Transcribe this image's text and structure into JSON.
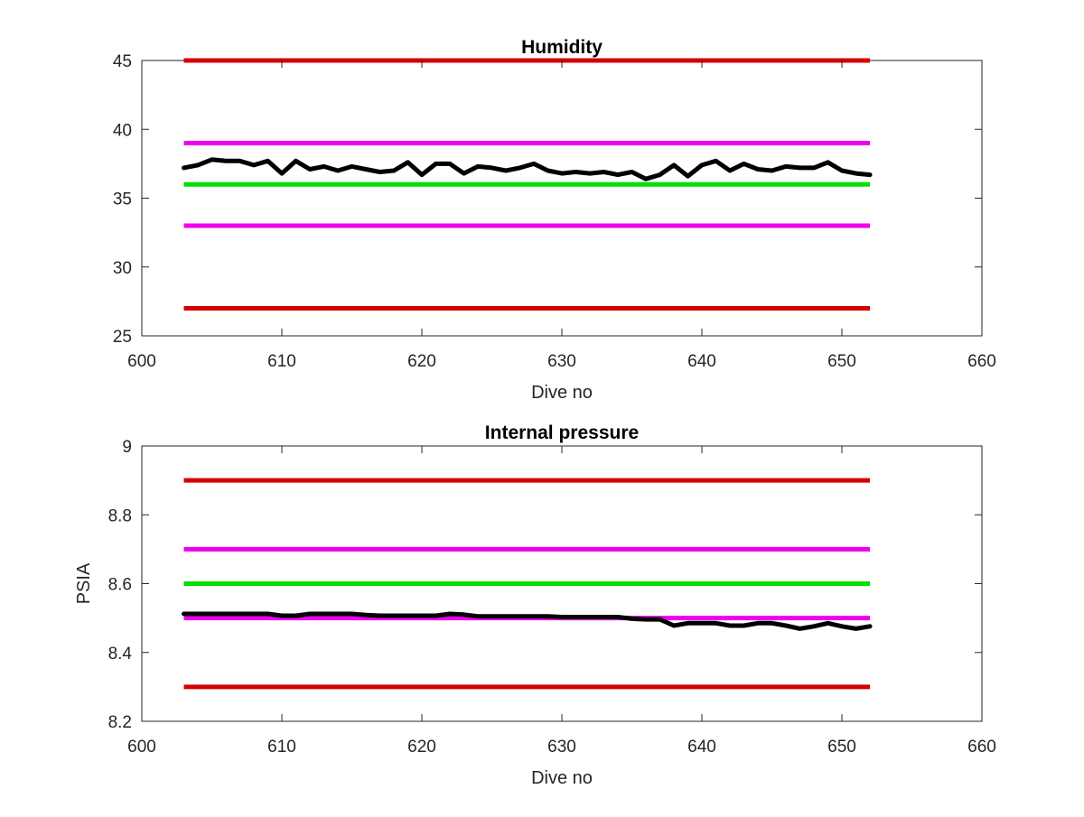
{
  "chart_data": [
    {
      "type": "line",
      "title": "Humidity",
      "xlabel": "Dive no",
      "ylabel": "",
      "xlim": [
        600,
        660
      ],
      "ylim": [
        25,
        45
      ],
      "xticks": [
        "600",
        "610",
        "620",
        "630",
        "640",
        "650",
        "660"
      ],
      "yticks": [
        "25",
        "30",
        "35",
        "40",
        "45"
      ],
      "grid": false,
      "threshold_lines": [
        {
          "y": 45,
          "x": [
            603,
            652
          ],
          "color": "#d40000"
        },
        {
          "y": 39,
          "x": [
            603,
            652
          ],
          "color": "#ee00ee"
        },
        {
          "y": 36,
          "x": [
            603,
            652
          ],
          "color": "#00e000"
        },
        {
          "y": 33,
          "x": [
            603,
            652
          ],
          "color": "#ee00ee"
        },
        {
          "y": 27,
          "x": [
            603,
            652
          ],
          "color": "#d40000"
        }
      ],
      "series": [
        {
          "color": "#000000",
          "x": [
            603,
            604,
            605,
            606,
            607,
            608,
            609,
            610,
            611,
            612,
            613,
            614,
            615,
            616,
            617,
            618,
            619,
            620,
            621,
            622,
            623,
            624,
            625,
            626,
            627,
            628,
            629,
            630,
            631,
            632,
            633,
            634,
            635,
            636,
            637,
            638,
            639,
            640,
            641,
            642,
            643,
            644,
            645,
            646,
            647,
            648,
            649,
            650,
            651,
            652
          ],
          "values": [
            37.2,
            37.4,
            37.8,
            37.7,
            37.7,
            37.4,
            37.7,
            36.8,
            37.7,
            37.1,
            37.3,
            37.0,
            37.3,
            37.1,
            36.9,
            37.0,
            37.6,
            36.7,
            37.5,
            37.5,
            36.8,
            37.3,
            37.2,
            37.0,
            37.2,
            37.5,
            37.0,
            36.8,
            36.9,
            36.8,
            36.9,
            36.7,
            36.9,
            36.4,
            36.7,
            37.4,
            36.6,
            37.4,
            37.7,
            37.0,
            37.5,
            37.1,
            37.0,
            37.3,
            37.2,
            37.2,
            37.6,
            37.0,
            36.8,
            36.7
          ]
        }
      ]
    },
    {
      "type": "line",
      "title": "Internal pressure",
      "xlabel": "Dive no",
      "ylabel": "PSIA",
      "xlim": [
        600,
        660
      ],
      "ylim": [
        8.2,
        9
      ],
      "xticks": [
        "600",
        "610",
        "620",
        "630",
        "640",
        "650",
        "660"
      ],
      "yticks": [
        "8.2",
        "8.4",
        "8.6",
        "8.8",
        "9"
      ],
      "grid": false,
      "threshold_lines": [
        {
          "y": 8.9,
          "x": [
            603,
            652
          ],
          "color": "#d40000"
        },
        {
          "y": 8.7,
          "x": [
            603,
            652
          ],
          "color": "#ee00ee"
        },
        {
          "y": 8.6,
          "x": [
            603,
            652
          ],
          "color": "#00e000"
        },
        {
          "y": 8.5,
          "x": [
            603,
            652
          ],
          "color": "#ee00ee"
        },
        {
          "y": 8.3,
          "x": [
            603,
            652
          ],
          "color": "#d40000"
        }
      ],
      "series": [
        {
          "color": "#000000",
          "x": [
            603,
            604,
            605,
            606,
            607,
            608,
            609,
            610,
            611,
            612,
            613,
            614,
            615,
            616,
            617,
            618,
            619,
            620,
            621,
            622,
            623,
            624,
            625,
            626,
            627,
            628,
            629,
            630,
            631,
            632,
            633,
            634,
            635,
            636,
            637,
            638,
            639,
            640,
            641,
            642,
            643,
            644,
            645,
            646,
            647,
            648,
            649,
            650,
            651,
            652
          ],
          "values": [
            8.512,
            8.512,
            8.512,
            8.512,
            8.512,
            8.512,
            8.512,
            8.507,
            8.507,
            8.512,
            8.512,
            8.512,
            8.512,
            8.509,
            8.507,
            8.507,
            8.507,
            8.507,
            8.507,
            8.512,
            8.51,
            8.505,
            8.505,
            8.505,
            8.505,
            8.505,
            8.505,
            8.503,
            8.503,
            8.503,
            8.503,
            8.503,
            8.498,
            8.496,
            8.496,
            8.478,
            8.485,
            8.485,
            8.485,
            8.478,
            8.478,
            8.485,
            8.485,
            8.478,
            8.469,
            8.476,
            8.485,
            8.476,
            8.469,
            8.476
          ]
        }
      ]
    }
  ]
}
